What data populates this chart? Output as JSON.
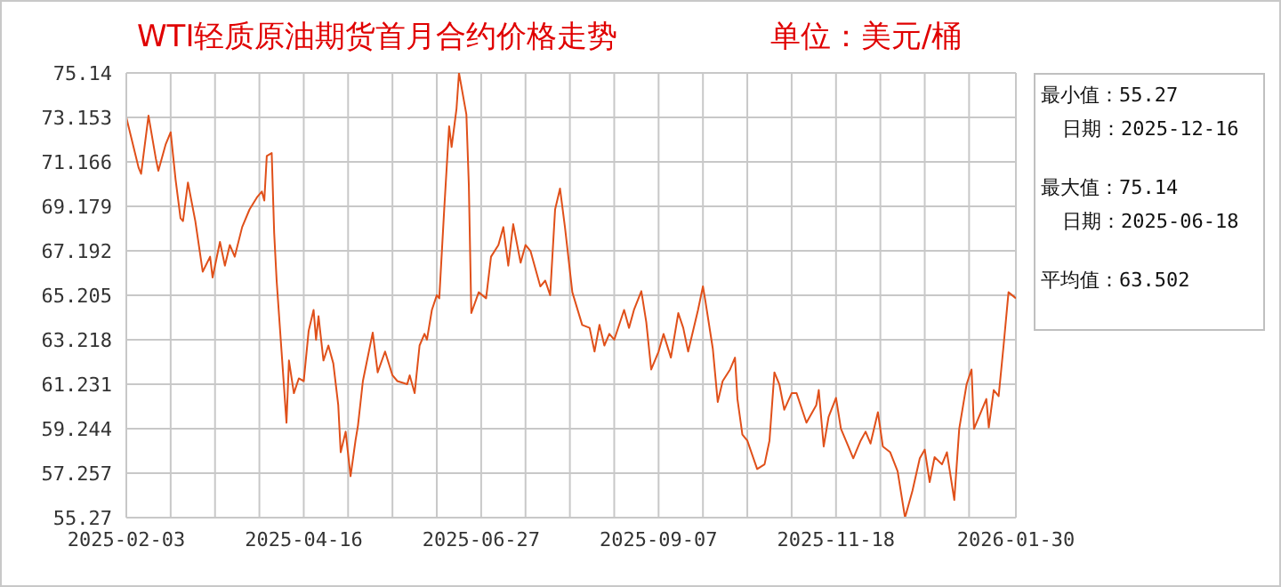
{
  "chart_data": {
    "type": "line",
    "title": "WTI轻质原油期货首月合约价格走势",
    "subtitle": "单位：美元/桶",
    "annotations": [
      "最小值：55.27",
      "日期：2025-12-16",
      "最大值：75.14",
      "日期：2025-06-18",
      "平均值：63.502"
    ],
    "grid": true,
    "marker": "none",
    "line_style": "solid",
    "xlim": [
      "2025-02-03",
      "2026-01-30"
    ],
    "xticks": [
      "2025-02-03",
      {
        "value": "2025-02-21",
        "label": null
      },
      {
        "value": "2025-03-11",
        "label": null
      },
      {
        "value": "2025-03-29",
        "label": null
      },
      "2025-04-16",
      {
        "value": "2025-05-04",
        "label": null
      },
      {
        "value": "2025-05-22",
        "label": null
      },
      {
        "value": "2025-06-09",
        "label": null
      },
      "2025-06-27",
      {
        "value": "2025-07-15",
        "label": null
      },
      {
        "value": "2025-08-02",
        "label": null
      },
      {
        "value": "2025-08-20",
        "label": null
      },
      "2025-09-07",
      {
        "value": "2025-09-25",
        "label": null
      },
      {
        "value": "2025-10-13",
        "label": null
      },
      {
        "value": "2025-10-31",
        "label": null
      },
      "2025-11-18",
      {
        "value": "2025-12-06",
        "label": null
      },
      {
        "value": "2025-12-24",
        "label": null
      },
      {
        "value": "2026-01-11",
        "label": null
      },
      "2026-01-30"
    ],
    "ylim": [
      55.27,
      75.14
    ],
    "yticks": [
      55.27,
      57.257,
      59.244,
      61.231,
      63.218,
      65.205,
      67.192,
      69.179,
      71.166,
      73.153,
      75.14
    ],
    "x": [
      "2025-02-03",
      "2025-02-08",
      "2025-02-09",
      "2025-02-12",
      "2025-02-15",
      "2025-02-16",
      "2025-02-19",
      "2025-02-21",
      "2025-02-23",
      "2025-02-25",
      "2025-02-26",
      "2025-02-28",
      "2025-03-03",
      "2025-03-06",
      "2025-03-09",
      "2025-03-10",
      "2025-03-13",
      "2025-03-15",
      "2025-03-17",
      "2025-03-19",
      "2025-03-22",
      "2025-03-25",
      "2025-03-28",
      "2025-03-30",
      "2025-03-31",
      "2025-04-01",
      "2025-04-03",
      "2025-04-04",
      "2025-04-05",
      "2025-04-07",
      "2025-04-09",
      "2025-04-10",
      "2025-04-12",
      "2025-04-14",
      "2025-04-16",
      "2025-04-18",
      "2025-04-20",
      "2025-04-21",
      "2025-04-22",
      "2025-04-24",
      "2025-04-26",
      "2025-04-28",
      "2025-04-30",
      "2025-05-01",
      "2025-05-03",
      "2025-05-05",
      "2025-05-07",
      "2025-05-08",
      "2025-05-10",
      "2025-05-14",
      "2025-05-16",
      "2025-05-19",
      "2025-05-22",
      "2025-05-24",
      "2025-05-28",
      "2025-05-29",
      "2025-05-31",
      "2025-06-02",
      "2025-06-04",
      "2025-06-05",
      "2025-06-07",
      "2025-06-09",
      "2025-06-10",
      "2025-06-12",
      "2025-06-14",
      "2025-06-15",
      "2025-06-17",
      "2025-06-18",
      "2025-06-21",
      "2025-06-22",
      "2025-06-23",
      "2025-06-26",
      "2025-06-29",
      "2025-07-01",
      "2025-07-04",
      "2025-07-06",
      "2025-07-08",
      "2025-07-10",
      "2025-07-13",
      "2025-07-15",
      "2025-07-17",
      "2025-07-21",
      "2025-07-23",
      "2025-07-25",
      "2025-07-27",
      "2025-07-29",
      "2025-07-31",
      "2025-08-03",
      "2025-08-07",
      "2025-08-10",
      "2025-08-12",
      "2025-08-14",
      "2025-08-16",
      "2025-08-18",
      "2025-08-20",
      "2025-08-24",
      "2025-08-26",
      "2025-08-28",
      "2025-08-31",
      "2025-09-02",
      "2025-09-04",
      "2025-09-07",
      "2025-09-09",
      "2025-09-12",
      "2025-09-15",
      "2025-09-17",
      "2025-09-19",
      "2025-09-23",
      "2025-09-25",
      "2025-09-26",
      "2025-09-29",
      "2025-10-01",
      "2025-10-03",
      "2025-10-06",
      "2025-10-08",
      "2025-10-09",
      "2025-10-11",
      "2025-10-13",
      "2025-10-17",
      "2025-10-20",
      "2025-10-22",
      "2025-10-24",
      "2025-10-26",
      "2025-10-28",
      "2025-10-31",
      "2025-11-02",
      "2025-11-06",
      "2025-11-10",
      "2025-11-11",
      "2025-11-13",
      "2025-11-15",
      "2025-11-18",
      "2025-11-20",
      "2025-11-23",
      "2025-11-25",
      "2025-11-28",
      "2025-11-30",
      "2025-12-02",
      "2025-12-05",
      "2025-12-07",
      "2025-12-10",
      "2025-12-13",
      "2025-12-16",
      "2025-12-19",
      "2025-12-22",
      "2025-12-24",
      "2025-12-26",
      "2025-12-28",
      "2025-12-31",
      "2026-01-02",
      "2026-01-05",
      "2026-01-07",
      "2026-01-10",
      "2026-01-12",
      "2026-01-13",
      "2026-01-17",
      "2026-01-18",
      "2026-01-19",
      "2026-01-21",
      "2026-01-23",
      "2026-01-25",
      "2026-01-27",
      "2026-01-30"
    ],
    "series": [
      {
        "color": "#e0501a",
        "values": [
          73.15,
          70.9,
          70.63,
          73.23,
          71.3,
          70.77,
          71.96,
          72.49,
          70.37,
          68.65,
          68.52,
          70.24,
          68.52,
          66.26,
          66.93,
          66.0,
          67.59,
          66.53,
          67.45,
          66.93,
          68.25,
          69.04,
          69.58,
          69.84,
          69.44,
          71.43,
          71.56,
          67.99,
          65.86,
          62.69,
          59.51,
          62.29,
          60.83,
          61.49,
          61.37,
          63.62,
          64.55,
          63.22,
          64.27,
          62.29,
          62.96,
          62.16,
          60.3,
          58.19,
          59.11,
          57.12,
          58.71,
          59.38,
          61.37,
          63.54,
          61.76,
          62.69,
          61.63,
          61.37,
          61.23,
          61.63,
          60.83,
          62.96,
          63.48,
          63.22,
          64.55,
          65.21,
          65.07,
          69.04,
          72.76,
          71.83,
          73.55,
          75.14,
          73.29,
          70.11,
          64.41,
          65.34,
          65.07,
          66.93,
          67.45,
          68.25,
          66.53,
          68.38,
          66.66,
          67.45,
          67.19,
          65.6,
          65.86,
          65.21,
          69.04,
          69.97,
          68.25,
          65.34,
          63.88,
          63.75,
          62.69,
          63.88,
          62.96,
          63.48,
          63.22,
          64.55,
          63.75,
          64.55,
          65.39,
          64.01,
          61.89,
          62.69,
          63.48,
          62.42,
          64.41,
          63.75,
          62.69,
          64.55,
          65.6,
          64.94,
          62.82,
          60.44,
          61.37,
          61.89,
          62.42,
          60.57,
          58.98,
          58.71,
          57.44,
          57.65,
          58.71,
          61.76,
          61.23,
          60.09,
          60.83,
          60.83,
          59.51,
          60.3,
          60.97,
          58.45,
          59.78,
          60.62,
          59.24,
          58.45,
          57.92,
          58.71,
          59.11,
          58.58,
          59.98,
          58.45,
          58.19,
          57.34,
          55.27,
          56.46,
          57.92,
          58.31,
          56.86,
          57.97,
          57.65,
          58.19,
          56.06,
          59.24,
          61.23,
          61.89,
          59.24,
          60.3,
          60.57,
          59.3,
          60.97,
          60.7,
          62.96,
          65.34,
          65.07
        ]
      }
    ]
  }
}
